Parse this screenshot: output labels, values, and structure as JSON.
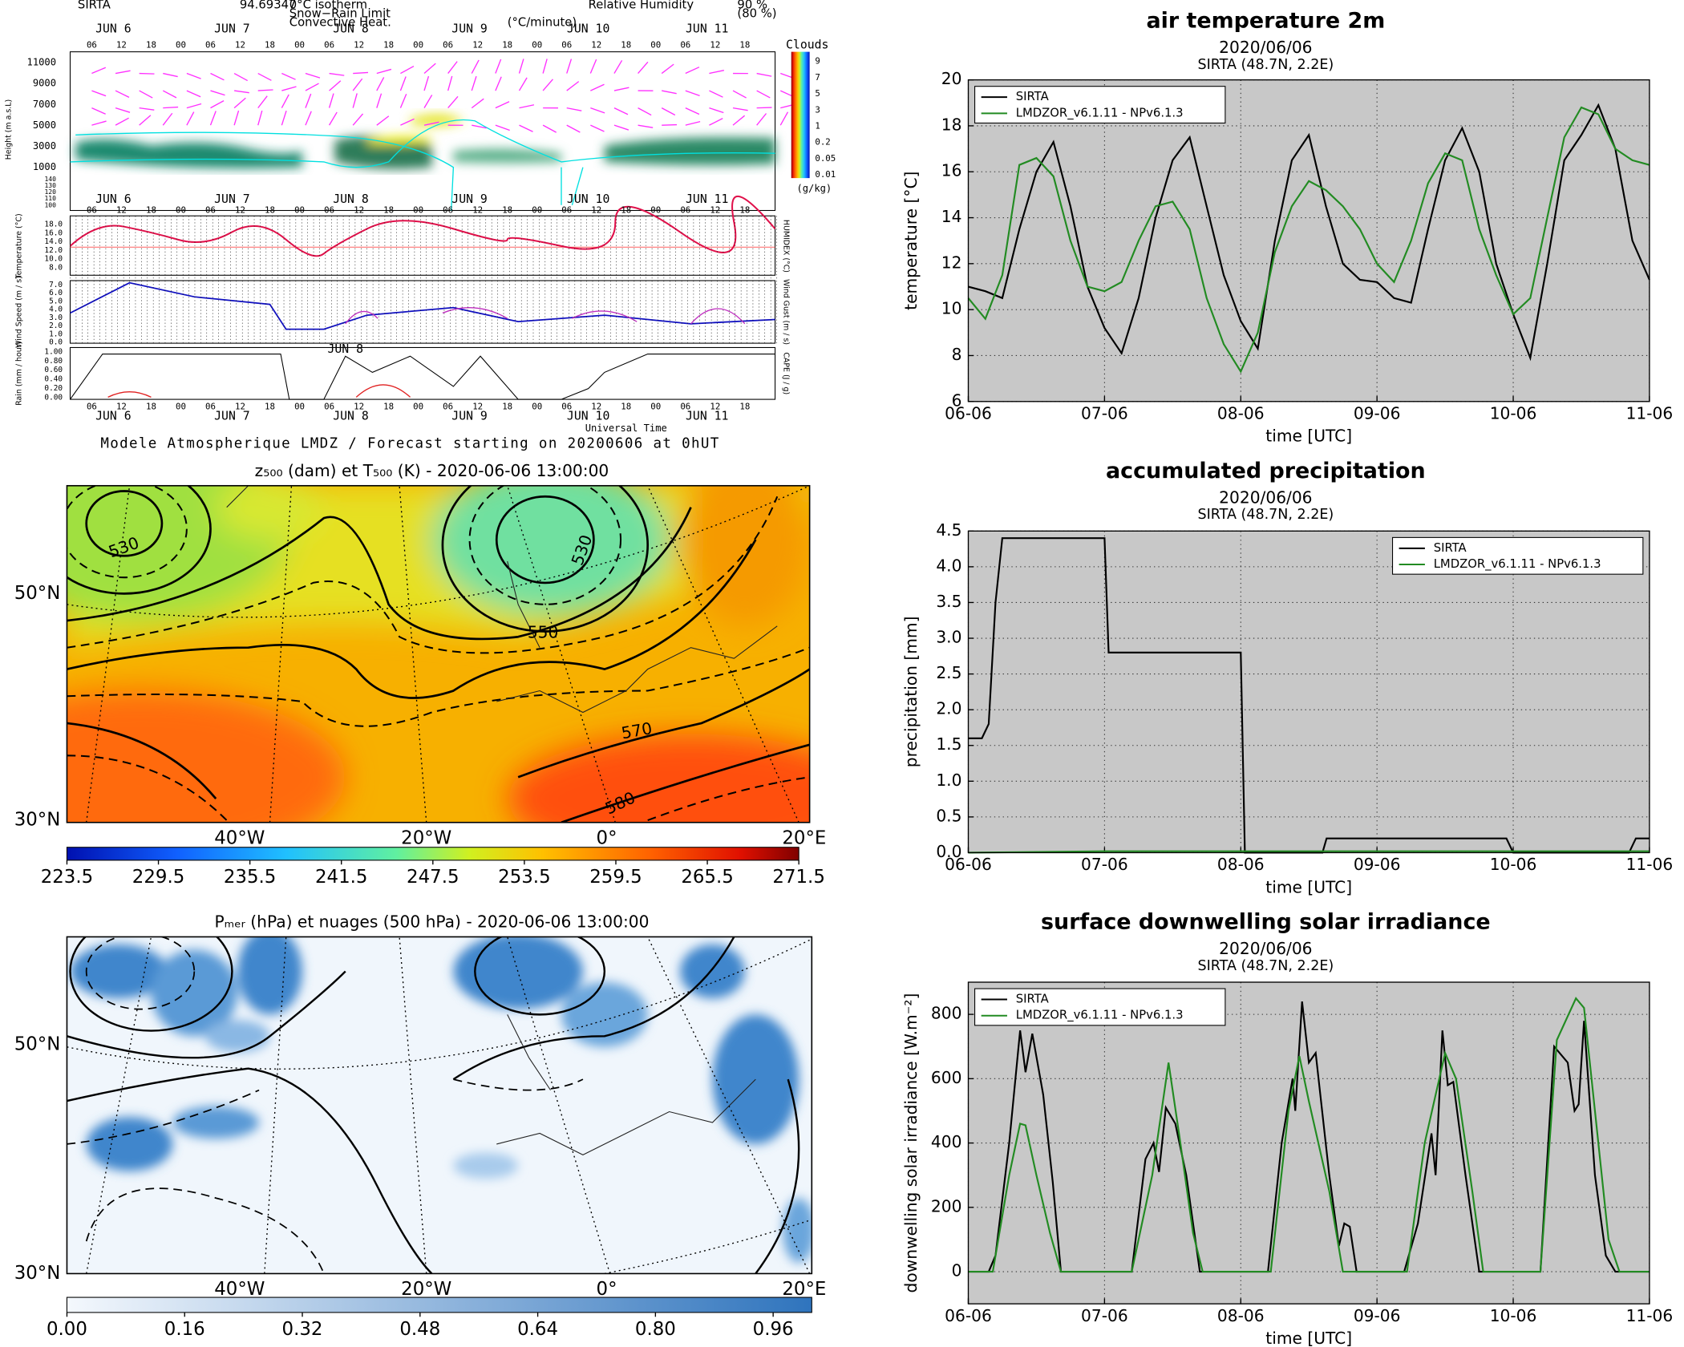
{
  "chart_data": [
    {
      "type": "line",
      "title": "air temperature 2m",
      "subtitle": "2020/06/06",
      "site": "SIRTA (48.7N, 2.2E)",
      "x_label": "time [UTC]",
      "y_label": "temperature [°C]",
      "x": [
        0,
        0.125,
        0.25,
        0.375,
        0.5,
        0.625,
        0.75,
        0.875,
        1,
        1.125,
        1.25,
        1.375,
        1.5,
        1.625,
        1.75,
        1.875,
        2,
        2.125,
        2.25,
        2.375,
        2.5,
        2.625,
        2.75,
        2.875,
        3,
        3.125,
        3.25,
        3.375,
        3.5,
        3.625,
        3.75,
        3.875,
        4,
        4.125,
        4.25,
        4.375,
        4.5,
        4.625,
        4.75,
        4.875,
        5
      ],
      "series": [
        {
          "name": "SIRTA",
          "color": "#000000",
          "values": [
            11.0,
            10.8,
            10.5,
            13.5,
            16.0,
            17.3,
            14.5,
            11.0,
            9.2,
            8.1,
            10.5,
            14.0,
            16.5,
            17.5,
            14.5,
            11.5,
            9.5,
            8.3,
            13.0,
            16.5,
            17.6,
            14.5,
            12.0,
            11.3,
            11.2,
            10.5,
            10.3,
            13.5,
            16.5,
            17.9,
            16.0,
            12.0,
            9.8,
            7.9,
            12.0,
            16.5,
            17.6,
            18.9,
            17.0,
            13.0,
            11.3
          ]
        },
        {
          "name": "LMDZOR_v6.1.11 - NPv6.1.3",
          "color": "#228b22",
          "values": [
            10.5,
            9.6,
            11.5,
            16.3,
            16.6,
            15.8,
            13.0,
            11.0,
            10.8,
            11.2,
            13.0,
            14.5,
            14.7,
            13.5,
            10.5,
            8.5,
            7.3,
            9.0,
            12.5,
            14.5,
            15.6,
            15.2,
            14.5,
            13.5,
            12.0,
            11.2,
            13.0,
            15.5,
            16.8,
            16.5,
            13.5,
            11.5,
            9.8,
            10.5,
            14.0,
            17.5,
            18.8,
            18.5,
            17.0,
            16.5,
            16.3
          ]
        }
      ],
      "xlim": [
        0,
        5
      ],
      "xticks": [
        {
          "value": 0,
          "label": "06-06"
        },
        {
          "value": 1,
          "label": "07-06"
        },
        {
          "value": 2,
          "label": "08-06"
        },
        {
          "value": 3,
          "label": "09-06"
        },
        {
          "value": 4,
          "label": "10-06"
        },
        {
          "value": 5,
          "label": "11-06"
        }
      ],
      "ylim": [
        6,
        20
      ],
      "yticks": [
        6,
        8,
        10,
        12,
        14,
        16,
        18,
        20
      ],
      "grid": true,
      "legend": "upper left",
      "background": "#c8c8c8"
    },
    {
      "type": "line",
      "title": "accumulated precipitation",
      "subtitle": "2020/06/06",
      "site": "SIRTA (48.7N, 2.2E)",
      "x_label": "time [UTC]",
      "y_label": "precipitation [mm]",
      "series": [
        {
          "name": "SIRTA",
          "color": "#000000",
          "x": [
            0,
            0.1,
            0.15,
            0.2,
            0.25,
            1.0,
            1.03,
            2.0,
            2.03,
            2.6,
            2.63,
            3.95,
            4.0,
            4.85,
            4.9,
            5.0
          ],
          "values": [
            1.6,
            1.6,
            1.8,
            3.5,
            4.4,
            4.4,
            2.8,
            2.8,
            0,
            0,
            0.2,
            0.2,
            0,
            0,
            0.2,
            0.2
          ]
        },
        {
          "name": "LMDZOR_v6.1.11 - NPv6.1.3",
          "color": "#228b22",
          "x": [
            0,
            1,
            5
          ],
          "values": [
            0,
            0.02,
            0.02
          ]
        }
      ],
      "xlim": [
        0,
        5
      ],
      "xticks": [
        {
          "value": 0,
          "label": "06-06"
        },
        {
          "value": 1,
          "label": "07-06"
        },
        {
          "value": 2,
          "label": "08-06"
        },
        {
          "value": 3,
          "label": "09-06"
        },
        {
          "value": 4,
          "label": "10-06"
        },
        {
          "value": 5,
          "label": "11-06"
        }
      ],
      "ylim": [
        0,
        4.5
      ],
      "yticks": [
        {
          "value": 0,
          "label": "0.0"
        },
        0.5,
        {
          "value": 1,
          "label": "1.0"
        },
        1.5,
        {
          "value": 2,
          "label": "2.0"
        },
        2.5,
        {
          "value": 3,
          "label": "3.0"
        },
        3.5,
        {
          "value": 4,
          "label": "4.0"
        },
        4.5
      ],
      "grid": true,
      "legend": "upper right",
      "background": "#c8c8c8"
    },
    {
      "type": "line",
      "title": "surface downwelling solar irradiance",
      "subtitle": "2020/06/06",
      "site": "SIRTA (48.7N, 2.2E)",
      "x_label": "time [UTC]",
      "y_label": "downwelling solar irradiance [W.m⁻²]",
      "series": [
        {
          "name": "SIRTA",
          "color": "#000000",
          "x": [
            0,
            0.15,
            0.2,
            0.3,
            0.38,
            0.42,
            0.47,
            0.55,
            0.62,
            0.68,
            1.0,
            1.2,
            1.3,
            1.36,
            1.4,
            1.45,
            1.52,
            1.6,
            1.7,
            2.0,
            2.2,
            2.3,
            2.38,
            2.4,
            2.45,
            2.5,
            2.55,
            2.65,
            2.72,
            2.76,
            2.8,
            2.85,
            3.2,
            3.3,
            3.4,
            3.43,
            3.48,
            3.52,
            3.56,
            3.65,
            3.75,
            4.2,
            4.3,
            4.4,
            4.45,
            4.48,
            4.52,
            4.6,
            4.68,
            4.75,
            5.0
          ],
          "values": [
            0,
            0,
            50,
            400,
            750,
            620,
            740,
            550,
            280,
            0,
            0,
            0,
            350,
            400,
            310,
            510,
            460,
            300,
            0,
            0,
            0,
            400,
            600,
            500,
            840,
            650,
            680,
            300,
            80,
            150,
            140,
            0,
            0,
            150,
            430,
            300,
            750,
            580,
            590,
            300,
            0,
            0,
            700,
            650,
            500,
            520,
            780,
            300,
            50,
            0,
            0
          ]
        },
        {
          "name": "LMDZOR_v6.1.11 - NPv6.1.3",
          "color": "#228b22",
          "x": [
            0,
            0.18,
            0.3,
            0.38,
            0.42,
            0.5,
            0.6,
            0.68,
            1.2,
            1.35,
            1.47,
            1.55,
            1.65,
            1.72,
            2.22,
            2.35,
            2.43,
            2.5,
            2.65,
            2.75,
            3.22,
            3.35,
            3.5,
            3.58,
            3.7,
            3.78,
            4.2,
            4.32,
            4.46,
            4.52,
            4.6,
            4.7,
            4.78,
            5.0
          ],
          "values": [
            0,
            0,
            300,
            460,
            455,
            300,
            120,
            0,
            0,
            300,
            650,
            420,
            120,
            0,
            0,
            500,
            670,
            530,
            250,
            0,
            0,
            400,
            680,
            600,
            250,
            0,
            0,
            720,
            850,
            820,
            500,
            100,
            0,
            0
          ]
        }
      ],
      "xlim": [
        0,
        5
      ],
      "xticks": [
        {
          "value": 0,
          "label": "06-06"
        },
        {
          "value": 1,
          "label": "07-06"
        },
        {
          "value": 2,
          "label": "08-06"
        },
        {
          "value": 3,
          "label": "09-06"
        },
        {
          "value": 4,
          "label": "10-06"
        },
        {
          "value": 5,
          "label": "11-06"
        }
      ],
      "ylim": [
        -100,
        900
      ],
      "yticks": [
        0,
        200,
        400,
        600,
        800
      ],
      "grid": true,
      "legend": "upper left",
      "background": "#c8c8c8"
    }
  ],
  "meteogram": {
    "header": {
      "site": "SIRTA",
      "code": "94.69347",
      "isotherm": "0°C isotherm",
      "snow": "Snow−Rain Limit",
      "convective": "Convective Heat.",
      "convective_unit": "(°C/minute)",
      "humidity": "Relative Humidity",
      "rh90": "90 %",
      "rh80": "(80 %)"
    },
    "days": [
      "JUN  6",
      "JUN  7",
      "JUN  8",
      "JUN  9",
      "JUN 10",
      "JUN 11"
    ],
    "hours": [
      "06",
      "12",
      "18",
      "00"
    ],
    "height_ticks": [
      "11000",
      "9000",
      "7000",
      "5000",
      "3000",
      "1000",
      "140",
      "130",
      "120",
      "110",
      "100"
    ],
    "temp_ticks": [
      "18.0",
      "16.0",
      "14.0",
      "12.0",
      "10.0",
      "8.0"
    ],
    "wind_ticks": [
      "7.0",
      "6.0",
      "5.0",
      "4.0",
      "3.0",
      "2.0",
      "1.0",
      "0.0"
    ],
    "rain_ticks": [
      "1.00",
      "0.80",
      "0.60",
      "0.40",
      "0.20",
      "0.00"
    ],
    "cloud_title": "Clouds",
    "cloud_unit": "(g/kg)",
    "cloud_ticks": [
      "9",
      "7",
      "5",
      "3",
      "1",
      "0.2",
      "0.05",
      "0.01"
    ],
    "left_labels": [
      "Height (m a.s.L)",
      "Temperature (°C)",
      "Wind Speed (m / s)",
      "Rain (mm / hour)"
    ],
    "right_labels": [
      "HUMIDEX (°C)",
      "Wind Gust (m / s)",
      "CAPE (J / g)"
    ],
    "time_label": "Universal Time",
    "caption": "Modele Atmospherique LMDZ / Forecast starting on 20200606 at 0hUT"
  },
  "maps": [
    {
      "title": "z₅₀₀ (dam) et T₅₀₀ (K) - 2020-06-06 13:00:00",
      "lon_labels": [
        "40°W",
        "20°W",
        "0°",
        "20°E"
      ],
      "lat_labels": [
        "50°N",
        "30°N"
      ],
      "contour_labels": [
        "530",
        "530",
        "550",
        "570",
        "580"
      ],
      "clim": [
        223.5,
        271.5
      ],
      "colorbar_ticks": [
        223.5,
        229.5,
        235.5,
        241.5,
        247.5,
        253.5,
        259.5,
        265.5,
        271.5
      ]
    },
    {
      "title": "Pₘₑᵣ (hPa) et nuages (500 hPa) - 2020-06-06 13:00:00",
      "lon_labels": [
        "40°W",
        "20°W",
        "0°",
        "20°E"
      ],
      "lat_labels": [
        "50°N",
        "30°N"
      ],
      "clim": [
        0,
        1.0125
      ],
      "colorbar_ticks": [
        {
          "value": 0,
          "label": "0.00"
        },
        0.16,
        0.32,
        0.48,
        0.64,
        {
          "value": 0.8,
          "label": "0.80"
        },
        0.96
      ]
    }
  ]
}
